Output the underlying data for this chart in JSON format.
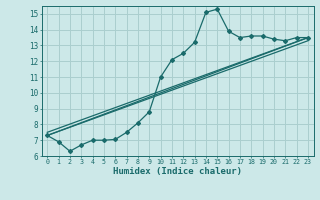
{
  "xlabel": "Humidex (Indice chaleur)",
  "bg_color": "#cce8e8",
  "grid_color": "#aacece",
  "line_color": "#1a6b6b",
  "xlim": [
    -0.5,
    23.5
  ],
  "ylim": [
    6,
    15.5
  ],
  "yticks": [
    6,
    7,
    8,
    9,
    10,
    11,
    12,
    13,
    14,
    15
  ],
  "xticks": [
    0,
    1,
    2,
    3,
    4,
    5,
    6,
    7,
    8,
    9,
    10,
    11,
    12,
    13,
    14,
    15,
    16,
    17,
    18,
    19,
    20,
    21,
    22,
    23
  ],
  "line1_x": [
    0,
    1,
    2,
    3,
    4,
    5,
    6,
    7,
    8,
    9,
    10,
    11,
    12,
    13,
    14,
    15,
    16,
    17,
    18,
    19,
    20,
    21,
    22,
    23
  ],
  "line1_y": [
    7.3,
    6.9,
    6.3,
    6.7,
    7.0,
    7.0,
    7.05,
    7.5,
    8.1,
    8.8,
    11.0,
    12.1,
    12.5,
    13.2,
    15.1,
    15.3,
    13.9,
    13.5,
    13.6,
    13.6,
    13.4,
    13.3,
    13.5,
    13.5
  ],
  "line2_x": [
    0,
    23
  ],
  "line2_y": [
    7.3,
    13.5
  ],
  "line3_x": [
    0,
    23
  ],
  "line3_y": [
    7.5,
    13.5
  ],
  "line4_x": [
    0,
    23
  ],
  "line4_y": [
    7.3,
    13.3
  ]
}
